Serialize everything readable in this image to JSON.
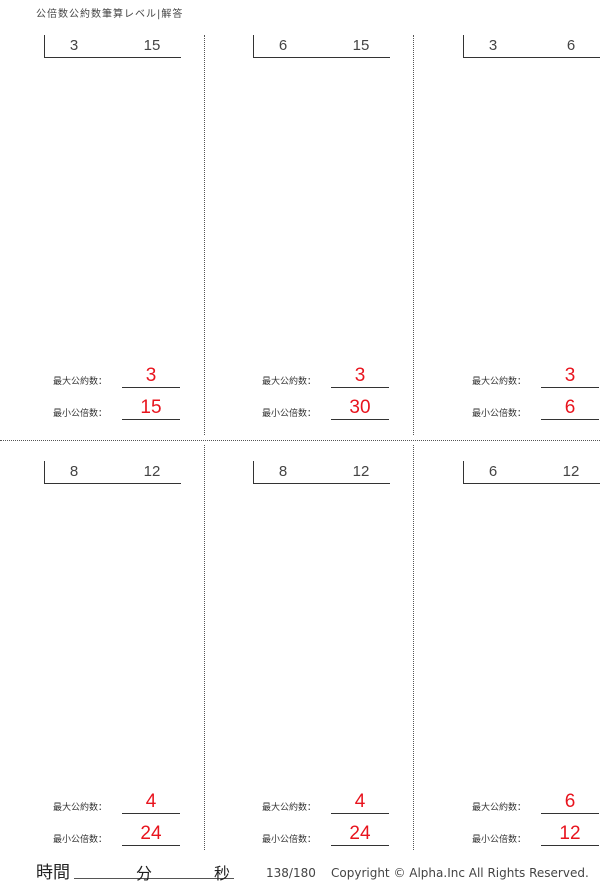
{
  "title": "公倍数公約数筆算レベル|解答",
  "labels": {
    "gcd": "最大公約数：",
    "lcm": "最小公倍数："
  },
  "problems": [
    {
      "a": "3",
      "b": "15",
      "gcd": "3",
      "lcm": "15"
    },
    {
      "a": "6",
      "b": "15",
      "gcd": "3",
      "lcm": "30"
    },
    {
      "a": "3",
      "b": "6",
      "gcd": "3",
      "lcm": "6"
    },
    {
      "a": "8",
      "b": "12",
      "gcd": "4",
      "lcm": "24"
    },
    {
      "a": "8",
      "b": "12",
      "gcd": "4",
      "lcm": "24"
    },
    {
      "a": "6",
      "b": "12",
      "gcd": "6",
      "lcm": "12"
    }
  ],
  "footer": {
    "time_label": "時間",
    "minutes": "分",
    "seconds": "秒",
    "page": "138/180",
    "copyright": "Copyright ©  Alpha.Inc All Rights Reserved."
  },
  "colors": {
    "answer": "#e8141e"
  }
}
